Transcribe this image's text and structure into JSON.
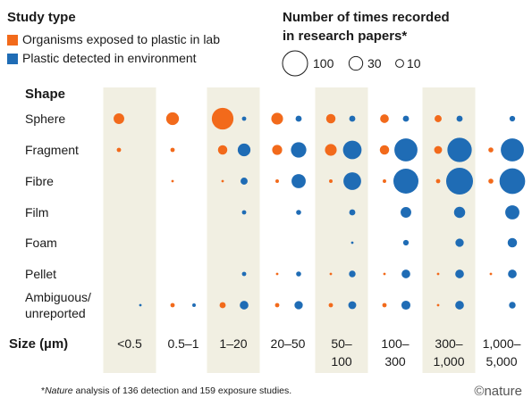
{
  "legend": {
    "study_type_title": "Study type",
    "study_types": [
      {
        "label": "Organisms exposed to plastic in lab",
        "color": "#f26a1b"
      },
      {
        "label": "Plastic detected in environment",
        "color": "#1f6cb5"
      }
    ],
    "size_title_line1": "Number of times recorded",
    "size_title_line2": "in research papers*",
    "size_keys": [
      {
        "label": "100",
        "value": 100
      },
      {
        "label": "30",
        "value": 30
      },
      {
        "label": "10",
        "value": 10
      }
    ]
  },
  "footnote": {
    "italic": "Nature",
    "rest": " analysis of 136 detection and 159 exposure studies."
  },
  "brand": "©nature",
  "chart_data": {
    "type": "scatter",
    "encoding": "bubble area proportional to number of times recorded",
    "row_axis_title": "Shape",
    "col_axis_title": "Size (µm)",
    "rows": [
      [
        "Sphere"
      ],
      [
        "Fragment"
      ],
      [
        "Fibre"
      ],
      [
        "Film"
      ],
      [
        "Foam"
      ],
      [
        "Pellet"
      ],
      [
        "Ambiguous/",
        "unreported"
      ]
    ],
    "columns": [
      [
        "<0.5"
      ],
      [
        "0.5–1"
      ],
      [
        "1–20"
      ],
      [
        "20–50"
      ],
      [
        "50–",
        "100"
      ],
      [
        "100–",
        "300"
      ],
      [
        "300–",
        "1,000"
      ],
      [
        "1,000–",
        "5,000"
      ]
    ],
    "shaded_columns": [
      0,
      2,
      4,
      6
    ],
    "colors": {
      "lab": "#f26a1b",
      "environment": "#1f6cb5",
      "shade": "#f1efe2"
    },
    "series": [
      {
        "key": "lab",
        "name": "Organisms exposed to plastic in lab",
        "values": [
          [
            18,
            26,
            75,
            22,
            14,
            12,
            8,
            0
          ],
          [
            3,
            3,
            14,
            16,
            22,
            14,
            10,
            4
          ],
          [
            0,
            1,
            1,
            2,
            2,
            2,
            3,
            4
          ],
          [
            0,
            0,
            0,
            0,
            0,
            0,
            0,
            0
          ],
          [
            0,
            0,
            0,
            0,
            0,
            0,
            0,
            0
          ],
          [
            0,
            0,
            0,
            1,
            1,
            1,
            1,
            1
          ],
          [
            0,
            3,
            6,
            3,
            3,
            3,
            1,
            0
          ]
        ]
      },
      {
        "key": "environment",
        "name": "Plastic detected in environment",
        "values": [
          [
            0,
            0,
            3,
            6,
            6,
            6,
            6,
            5
          ],
          [
            0,
            0,
            26,
            38,
            55,
            85,
            95,
            85
          ],
          [
            0,
            0,
            8,
            32,
            50,
            100,
            115,
            105
          ],
          [
            0,
            0,
            3,
            4,
            6,
            18,
            20,
            32
          ],
          [
            0,
            0,
            0,
            0,
            1,
            5,
            11,
            14
          ],
          [
            0,
            0,
            3,
            4,
            7,
            12,
            12,
            12
          ],
          [
            1,
            2,
            12,
            11,
            10,
            13,
            12,
            7
          ]
        ]
      }
    ]
  }
}
